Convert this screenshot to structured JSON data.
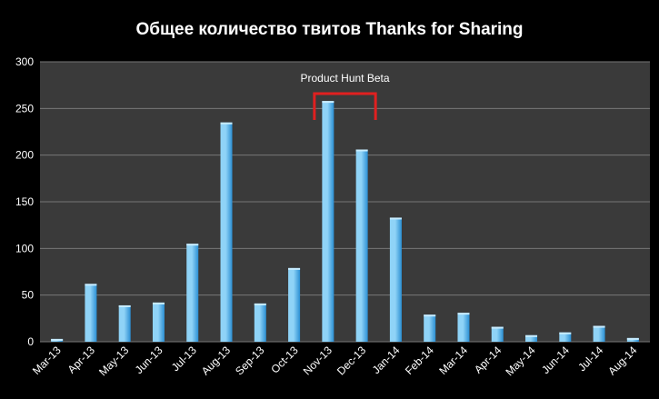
{
  "chart_data": {
    "type": "bar",
    "title": "Общее количество твитов Thanks for Sharing",
    "xlabel": "",
    "ylabel": "",
    "ylim": [
      0,
      300
    ],
    "yticks": [
      0,
      50,
      100,
      150,
      200,
      250,
      300
    ],
    "grid": true,
    "categories": [
      "Mar-13",
      "Apr-13",
      "May-13",
      "Jun-13",
      "Jul-13",
      "Aug-13",
      "Sep-13",
      "Oct-13",
      "Nov-13",
      "Dec-13",
      "Jan-14",
      "Feb-14",
      "Mar-14",
      "Apr-14",
      "May-14",
      "Jun-14",
      "Jul-14",
      "Aug-14"
    ],
    "values": [
      3,
      62,
      39,
      42,
      105,
      235,
      41,
      79,
      258,
      206,
      133,
      29,
      31,
      16,
      7,
      10,
      17,
      4
    ],
    "annotations": [
      {
        "text": "Product Hunt Beta",
        "from": "Nov-13",
        "to": "Dec-13"
      }
    ],
    "colors": {
      "plot_background": "#3a3a3a",
      "page_background": "#000000",
      "bar_light": "#8fd3f7",
      "bar_dark": "#2b8fd3",
      "gridline": "#777777",
      "bracket": "#e02020",
      "text": "#ffffff"
    }
  }
}
